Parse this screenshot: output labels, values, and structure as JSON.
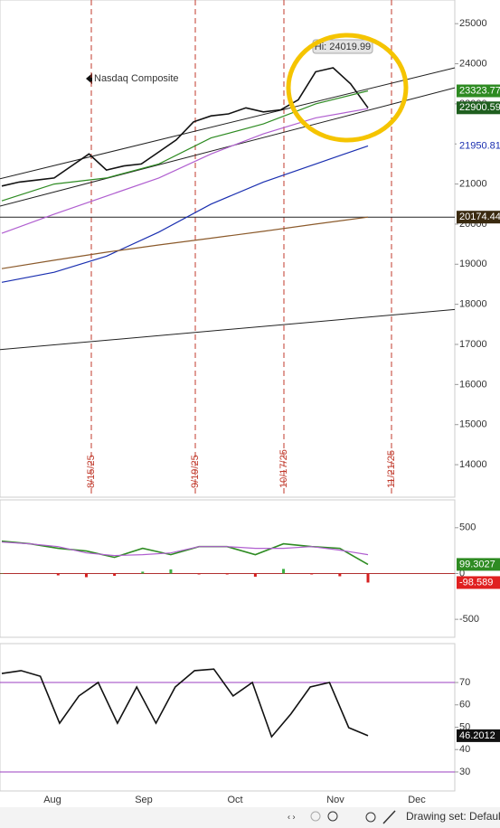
{
  "chart_data": [
    {
      "type": "line",
      "annotation": "Nasdaq Composite",
      "hi_label": "Hi: 24019.99",
      "ylim": [
        13190,
        25590
      ],
      "yticks": [
        25000,
        24000,
        23000,
        22000,
        21000,
        20000,
        19000,
        18000,
        17000,
        16000,
        15000,
        14000
      ],
      "event_lines": [
        "8/15/25",
        "9/19/25",
        "10/17/25",
        "11/21/25"
      ],
      "series": [
        {
          "color": "#111111",
          "values": [
            20950,
            21050,
            21100,
            21150,
            21450,
            21750,
            21350,
            21450,
            21500,
            21800,
            22100,
            22550,
            22700,
            22750,
            22900,
            22800,
            22850,
            23100,
            23800,
            23900,
            23500,
            22900.59
          ]
        },
        {
          "color": "#2e8b22",
          "values": [
            20580,
            21000,
            21150,
            21500,
            22150,
            22500,
            23000,
            23323.77
          ]
        },
        {
          "color": "#b05fd0",
          "values": [
            19770,
            20250,
            20700,
            21150,
            21750,
            22250,
            22650,
            22880
          ]
        },
        {
          "color": "#1a2fb0",
          "values": [
            18550,
            18800,
            19200,
            19800,
            20500,
            21050,
            21500,
            21950.81
          ]
        },
        {
          "color": "#8b5a2b",
          "values": [
            18890,
            19100,
            19300,
            19480,
            19650,
            19820,
            20000,
            20174.44
          ]
        }
      ],
      "trendlines": [
        [
          21130,
          23900
        ],
        [
          20450,
          23400
        ],
        [
          16870,
          17870
        ],
        [
          20174.44,
          20174.44
        ]
      ],
      "tags": [
        {
          "value": 23323.77,
          "color": "#2e8b22",
          "text_color": "#ffffff"
        },
        {
          "value": 22900.59,
          "color": "#1f5f1f",
          "text_color": "#ffffff"
        },
        {
          "value": 21950.81,
          "color": "#ffffff",
          "text_color": "#1a2fb0"
        },
        {
          "value": 20174.44,
          "color": "#3a2a10",
          "text_color": "#ffffff"
        }
      ]
    },
    {
      "type": "line",
      "ylim": [
        -696,
        804
      ],
      "yticks": [
        500,
        0,
        -500
      ],
      "series": [
        {
          "color": "#2e8b22",
          "values": [
            353,
            324,
            275,
            245,
            176,
            275,
            206,
            294,
            294,
            206,
            324,
            294,
            275,
            99.3027
          ]
        },
        {
          "color": "#b05fd0",
          "values": [
            343,
            324,
            294,
            225,
            196,
            206,
            225,
            294,
            294,
            275,
            275,
            294,
            255,
            206
          ]
        }
      ],
      "histogram": {
        "values": [
          5,
          -5,
          -20,
          -40,
          -25,
          20,
          45,
          -10,
          -10,
          -35,
          50,
          -10,
          -30,
          -98.589
        ],
        "positive_color": "#3cb043",
        "negative_color": "#d62020"
      },
      "tags": [
        {
          "value": 99.3027,
          "color": "#2e8b22",
          "text_color": "#ffffff"
        },
        {
          "value": -98.589,
          "color": "#e02020",
          "text_color": "#ffffff"
        }
      ]
    },
    {
      "type": "line",
      "ylim": [
        21.5,
        87.4
      ],
      "yticks": [
        70,
        60,
        50,
        40,
        30
      ],
      "x_labels": [
        "Aug",
        "Sep",
        "Oct",
        "Nov",
        "Dec"
      ],
      "levels": [
        70,
        30
      ],
      "level_color": "#9b3fc0",
      "series": [
        {
          "color": "#111111",
          "values": [
            74,
            75.3,
            72.8,
            51.8,
            64,
            70,
            51.8,
            68,
            51.8,
            68,
            75.3,
            76,
            64,
            70,
            45.7,
            55.9,
            68,
            70,
            49.8,
            46.2012
          ]
        }
      ],
      "tags": [
        {
          "value": 46.2012,
          "color": "#111111",
          "text_color": "#ffffff"
        }
      ]
    }
  ],
  "toolbar": {
    "label": "Drawing set: Default"
  }
}
